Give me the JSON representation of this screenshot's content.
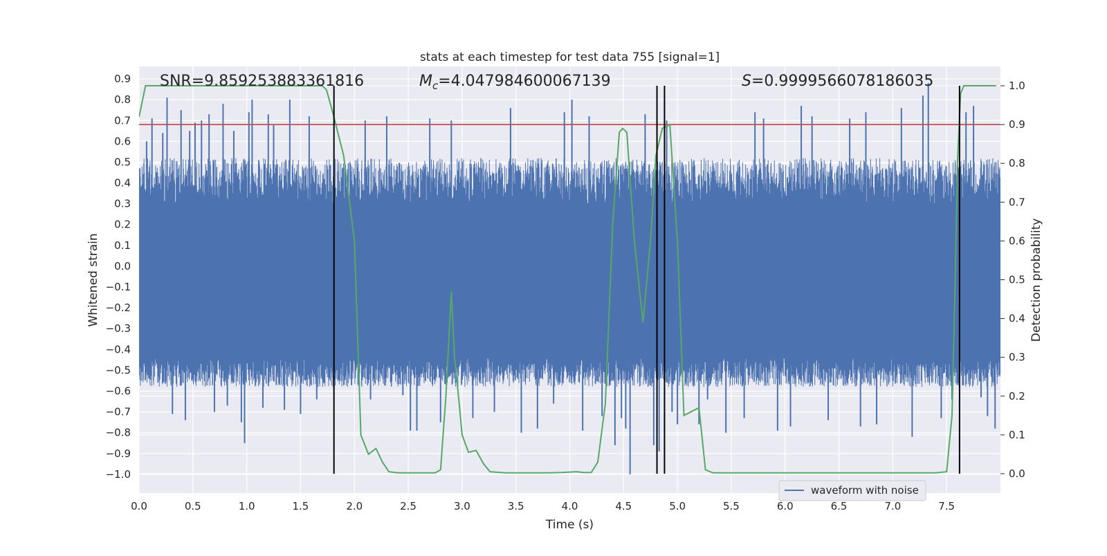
{
  "chart_data": {
    "type": "line",
    "title": "stats at each timestep for test data 755 [signal=1]",
    "xlabel": "Time (s)",
    "ylabel_left": "Whitened strain",
    "ylabel_right": "Detection probability",
    "xlim": [
      0.0,
      8.0
    ],
    "ylim_left": [
      -1.09,
      0.96
    ],
    "ylim_right": [
      -0.05,
      1.05
    ],
    "x_ticks": [
      "0.0",
      "0.5",
      "1.0",
      "1.5",
      "2.0",
      "2.5",
      "3.0",
      "3.5",
      "4.0",
      "4.5",
      "5.0",
      "5.5",
      "6.0",
      "6.5",
      "7.0",
      "7.5"
    ],
    "y_ticks_left": [
      "0.9",
      "0.8",
      "0.7",
      "0.6",
      "0.5",
      "0.4",
      "0.3",
      "0.2",
      "0.1",
      "0.0",
      "−0.1",
      "−0.2",
      "−0.3",
      "−0.4",
      "−0.5",
      "−0.6",
      "−0.7",
      "−0.8",
      "−0.9",
      "−1.0"
    ],
    "y_ticks_right": [
      "1.0",
      "0.9",
      "0.8",
      "0.7",
      "0.6",
      "0.5",
      "0.4",
      "0.3",
      "0.2",
      "0.1",
      "0.0"
    ],
    "grid": true,
    "legend_placement": "lower-right",
    "annotations": {
      "snr": "SNR=9.859253883361816",
      "mc_symbol": "M",
      "mc_subscript": "c",
      "mc_value": "=4.047984600067139",
      "s_symbol": "S",
      "s_value": "=0.9999566078186035"
    },
    "threshold_line": {
      "axis": "right",
      "value": 0.9,
      "color": "#c44e52"
    },
    "vertical_markers": [
      1.81,
      4.81,
      4.88,
      7.62
    ],
    "series": [
      {
        "name": "waveform with noise",
        "axis": "left",
        "color": "#4c72b0",
        "description_values": "whitened strain noise, sampled densely over 0–8 s",
        "band": {
          "core_low": -0.44,
          "core_high": 0.3
        },
        "spikes": [
          {
            "x": 0.07,
            "y": 0.6
          },
          {
            "x": 0.09,
            "y": -0.45
          },
          {
            "x": 0.12,
            "y": 0.71
          },
          {
            "x": 0.18,
            "y": -0.53
          },
          {
            "x": 0.22,
            "y": 0.64
          },
          {
            "x": 0.26,
            "y": 0.81
          },
          {
            "x": 0.31,
            "y": -0.71
          },
          {
            "x": 0.39,
            "y": 0.75
          },
          {
            "x": 0.43,
            "y": -0.74
          },
          {
            "x": 0.47,
            "y": 0.65
          },
          {
            "x": 0.52,
            "y": 0.69
          },
          {
            "x": 0.58,
            "y": 0.7
          },
          {
            "x": 0.65,
            "y": 0.73
          },
          {
            "x": 0.7,
            "y": -0.7
          },
          {
            "x": 0.78,
            "y": 0.78
          },
          {
            "x": 0.82,
            "y": -0.67
          },
          {
            "x": 0.88,
            "y": 0.65
          },
          {
            "x": 0.95,
            "y": -0.75
          },
          {
            "x": 0.98,
            "y": -0.85
          },
          {
            "x": 1.02,
            "y": 0.74
          },
          {
            "x": 1.05,
            "y": 0.8
          },
          {
            "x": 1.15,
            "y": -0.68
          },
          {
            "x": 1.2,
            "y": 0.73
          },
          {
            "x": 1.25,
            "y": 0.68
          },
          {
            "x": 1.35,
            "y": -0.69
          },
          {
            "x": 1.4,
            "y": 0.8
          },
          {
            "x": 1.5,
            "y": -0.71
          },
          {
            "x": 1.58,
            "y": 0.72
          },
          {
            "x": 1.65,
            "y": -0.64
          },
          {
            "x": 2.1,
            "y": 0.7
          },
          {
            "x": 2.15,
            "y": -0.64
          },
          {
            "x": 2.3,
            "y": 0.72
          },
          {
            "x": 2.45,
            "y": -0.62
          },
          {
            "x": 2.52,
            "y": -0.79
          },
          {
            "x": 2.58,
            "y": -0.79
          },
          {
            "x": 2.7,
            "y": 0.71
          },
          {
            "x": 2.8,
            "y": -0.75
          },
          {
            "x": 2.9,
            "y": 0.7
          },
          {
            "x": 3.1,
            "y": -0.73
          },
          {
            "x": 3.3,
            "y": -0.7
          },
          {
            "x": 3.45,
            "y": 0.76
          },
          {
            "x": 3.55,
            "y": -0.8
          },
          {
            "x": 3.7,
            "y": -0.78
          },
          {
            "x": 3.85,
            "y": -0.66
          },
          {
            "x": 3.95,
            "y": 0.74
          },
          {
            "x": 4.02,
            "y": 0.8
          },
          {
            "x": 4.12,
            "y": -0.79
          },
          {
            "x": 4.18,
            "y": 0.72
          },
          {
            "x": 4.3,
            "y": -0.72
          },
          {
            "x": 4.42,
            "y": -0.86
          },
          {
            "x": 4.48,
            "y": -0.73
          },
          {
            "x": 4.52,
            "y": -0.78
          },
          {
            "x": 4.56,
            "y": -1.0
          },
          {
            "x": 4.7,
            "y": 0.73
          },
          {
            "x": 4.78,
            "y": -0.86
          },
          {
            "x": 4.83,
            "y": -0.89
          },
          {
            "x": 4.9,
            "y": 0.7
          },
          {
            "x": 4.95,
            "y": -0.7
          },
          {
            "x": 5.0,
            "y": -0.76
          },
          {
            "x": 5.2,
            "y": -0.76
          },
          {
            "x": 5.28,
            "y": -0.64
          },
          {
            "x": 5.45,
            "y": -0.8
          },
          {
            "x": 5.62,
            "y": -0.73
          },
          {
            "x": 5.72,
            "y": 0.74
          },
          {
            "x": 5.8,
            "y": 0.71
          },
          {
            "x": 5.93,
            "y": -0.79
          },
          {
            "x": 6.05,
            "y": -0.77
          },
          {
            "x": 6.15,
            "y": 0.77
          },
          {
            "x": 6.25,
            "y": 0.72
          },
          {
            "x": 6.4,
            "y": -0.74
          },
          {
            "x": 6.6,
            "y": 0.71
          },
          {
            "x": 6.7,
            "y": -0.77
          },
          {
            "x": 6.75,
            "y": 0.74
          },
          {
            "x": 6.85,
            "y": -0.76
          },
          {
            "x": 7.08,
            "y": 0.76
          },
          {
            "x": 7.18,
            "y": -0.82
          },
          {
            "x": 7.28,
            "y": 0.82
          },
          {
            "x": 7.33,
            "y": 0.88
          },
          {
            "x": 7.45,
            "y": -0.73
          },
          {
            "x": 7.55,
            "y": -0.64
          },
          {
            "x": 7.68,
            "y": 0.74
          },
          {
            "x": 7.75,
            "y": 0.77
          },
          {
            "x": 7.82,
            "y": -0.63
          },
          {
            "x": 7.88,
            "y": -0.72
          },
          {
            "x": 7.95,
            "y": -0.78
          }
        ]
      },
      {
        "name": "",
        "axis": "right",
        "color": "#55a868",
        "x": [
          0.0,
          0.06,
          0.1,
          0.2,
          0.4,
          0.6,
          0.8,
          1.0,
          1.2,
          1.4,
          1.6,
          1.7,
          1.74,
          1.8,
          1.9,
          2.0,
          2.06,
          2.13,
          2.2,
          2.26,
          2.32,
          2.4,
          2.6,
          2.75,
          2.8,
          2.85,
          2.9,
          2.93,
          2.97,
          3.0,
          3.06,
          3.13,
          3.2,
          3.26,
          3.4,
          3.6,
          3.8,
          3.93,
          4.06,
          4.13,
          4.2,
          4.26,
          4.33,
          4.4,
          4.46,
          4.49,
          4.53,
          4.6,
          4.68,
          4.75,
          4.8,
          4.86,
          4.93,
          5.0,
          5.06,
          5.13,
          5.2,
          5.26,
          5.33,
          5.6,
          5.8,
          6.0,
          6.4,
          6.7,
          6.9,
          7.2,
          7.4,
          7.5,
          7.55,
          7.58,
          7.6,
          7.63,
          7.66,
          7.7,
          7.74,
          7.8,
          7.9,
          7.96
        ],
        "y": [
          0.92,
          1.0,
          1.0,
          1.0,
          1.0,
          1.0,
          1.0,
          1.0,
          1.0,
          1.0,
          1.0,
          1.0,
          0.99,
          0.93,
          0.82,
          0.6,
          0.1,
          0.05,
          0.065,
          0.03,
          0.005,
          0.002,
          0.002,
          0.002,
          0.01,
          0.2,
          0.47,
          0.3,
          0.19,
          0.1,
          0.055,
          0.06,
          0.025,
          0.005,
          0.002,
          0.002,
          0.002,
          0.003,
          0.005,
          0.003,
          0.003,
          0.03,
          0.18,
          0.65,
          0.88,
          0.89,
          0.88,
          0.6,
          0.39,
          0.6,
          0.82,
          0.89,
          0.9,
          0.6,
          0.15,
          0.16,
          0.17,
          0.01,
          0.002,
          0.002,
          0.002,
          0.002,
          0.002,
          0.002,
          0.002,
          0.002,
          0.002,
          0.005,
          0.15,
          0.5,
          0.8,
          0.98,
          1.0,
          1.0,
          1.0,
          1.0,
          1.0,
          1.0
        ]
      }
    ]
  }
}
